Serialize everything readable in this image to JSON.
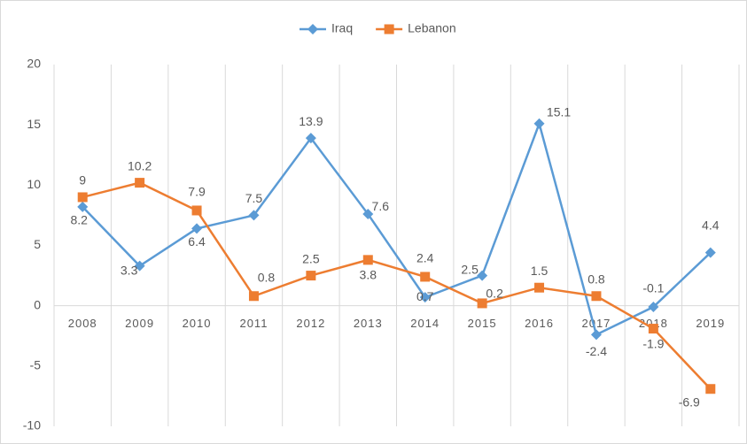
{
  "chart_data": {
    "type": "line",
    "categories": [
      "2008",
      "2009",
      "2010",
      "2011",
      "2012",
      "2013",
      "2014",
      "2015",
      "2016",
      "2017",
      "2018",
      "2019"
    ],
    "series": [
      {
        "name": "Iraq",
        "color": "#5b9bd5",
        "marker": "diamond",
        "values": [
          8.2,
          3.3,
          6.4,
          7.5,
          13.9,
          7.6,
          0.7,
          2.5,
          15.1,
          -2.4,
          -0.1,
          4.4
        ]
      },
      {
        "name": "Lebanon",
        "color": "#ed7d31",
        "marker": "square",
        "values": [
          9,
          10.2,
          7.9,
          0.8,
          2.5,
          3.8,
          2.4,
          0.2,
          1.5,
          0.8,
          -1.9,
          -6.9
        ]
      }
    ],
    "ylim": [
      -10,
      20
    ],
    "yticks": [
      -10,
      -5,
      0,
      5,
      10,
      15,
      20
    ],
    "grid": "vertical",
    "legend": "top"
  }
}
